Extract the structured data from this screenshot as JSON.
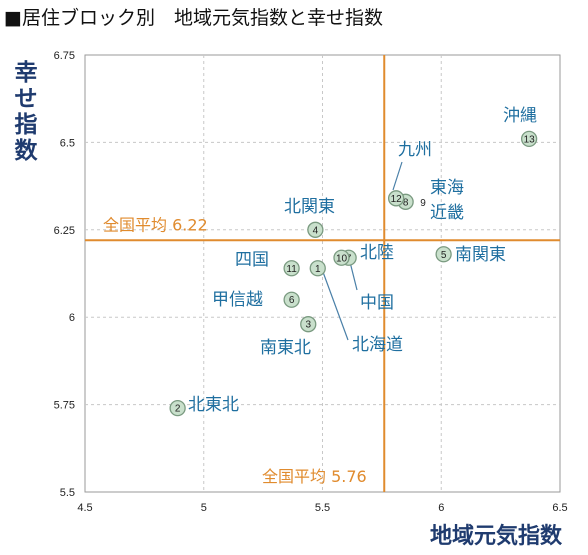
{
  "title": "■居住ブロック別　地域元気指数と幸せ指数",
  "chart_data": {
    "type": "scatter",
    "title": "■居住ブロック別　地域元気指数と幸せ指数",
    "xlabel": "地域元気指数",
    "ylabel": "幸せ指数",
    "xlim": [
      4.5,
      6.5
    ],
    "ylim": [
      5.5,
      6.75
    ],
    "xticks": [
      "4.5",
      "5",
      "5.5",
      "6",
      "6.5"
    ],
    "yticks": [
      "5.5",
      "5.75",
      "6",
      "6.25",
      "6.5",
      "6.75"
    ],
    "grid": true,
    "reference_lines": {
      "horizontal": {
        "value": 6.22,
        "label": "全国平均 6.22"
      },
      "vertical": {
        "value": 5.76,
        "label": "全国平均 5.76"
      }
    },
    "colors": {
      "reference": "#e08b2e",
      "point_fill": "#c9e0cc",
      "point_stroke": "#7a9a80",
      "label": "#1f6fa0"
    },
    "points": [
      {
        "id": "1",
        "name": "北海道",
        "x": 5.48,
        "y": 6.14
      },
      {
        "id": "2",
        "name": "北東北",
        "x": 4.89,
        "y": 5.74
      },
      {
        "id": "3",
        "name": "南東北",
        "x": 5.44,
        "y": 5.98
      },
      {
        "id": "4",
        "name": "北関東",
        "x": 5.47,
        "y": 6.25
      },
      {
        "id": "5",
        "name": "南関東",
        "x": 6.01,
        "y": 6.18
      },
      {
        "id": "6",
        "name": "甲信越",
        "x": 5.37,
        "y": 6.05
      },
      {
        "id": "7",
        "name": "中国",
        "x": 5.61,
        "y": 6.17
      },
      {
        "id": "8",
        "name": "東海",
        "x": 5.85,
        "y": 6.33
      },
      {
        "id": "9",
        "name": "近畿",
        "x": 5.86,
        "y": 6.33
      },
      {
        "id": "10",
        "name": "北陸",
        "x": 5.58,
        "y": 6.17
      },
      {
        "id": "11",
        "name": "四国",
        "x": 5.37,
        "y": 6.14
      },
      {
        "id": "12",
        "name": "九州",
        "x": 5.81,
        "y": 6.34
      },
      {
        "id": "13",
        "name": "沖縄",
        "x": 6.37,
        "y": 6.51
      }
    ]
  }
}
